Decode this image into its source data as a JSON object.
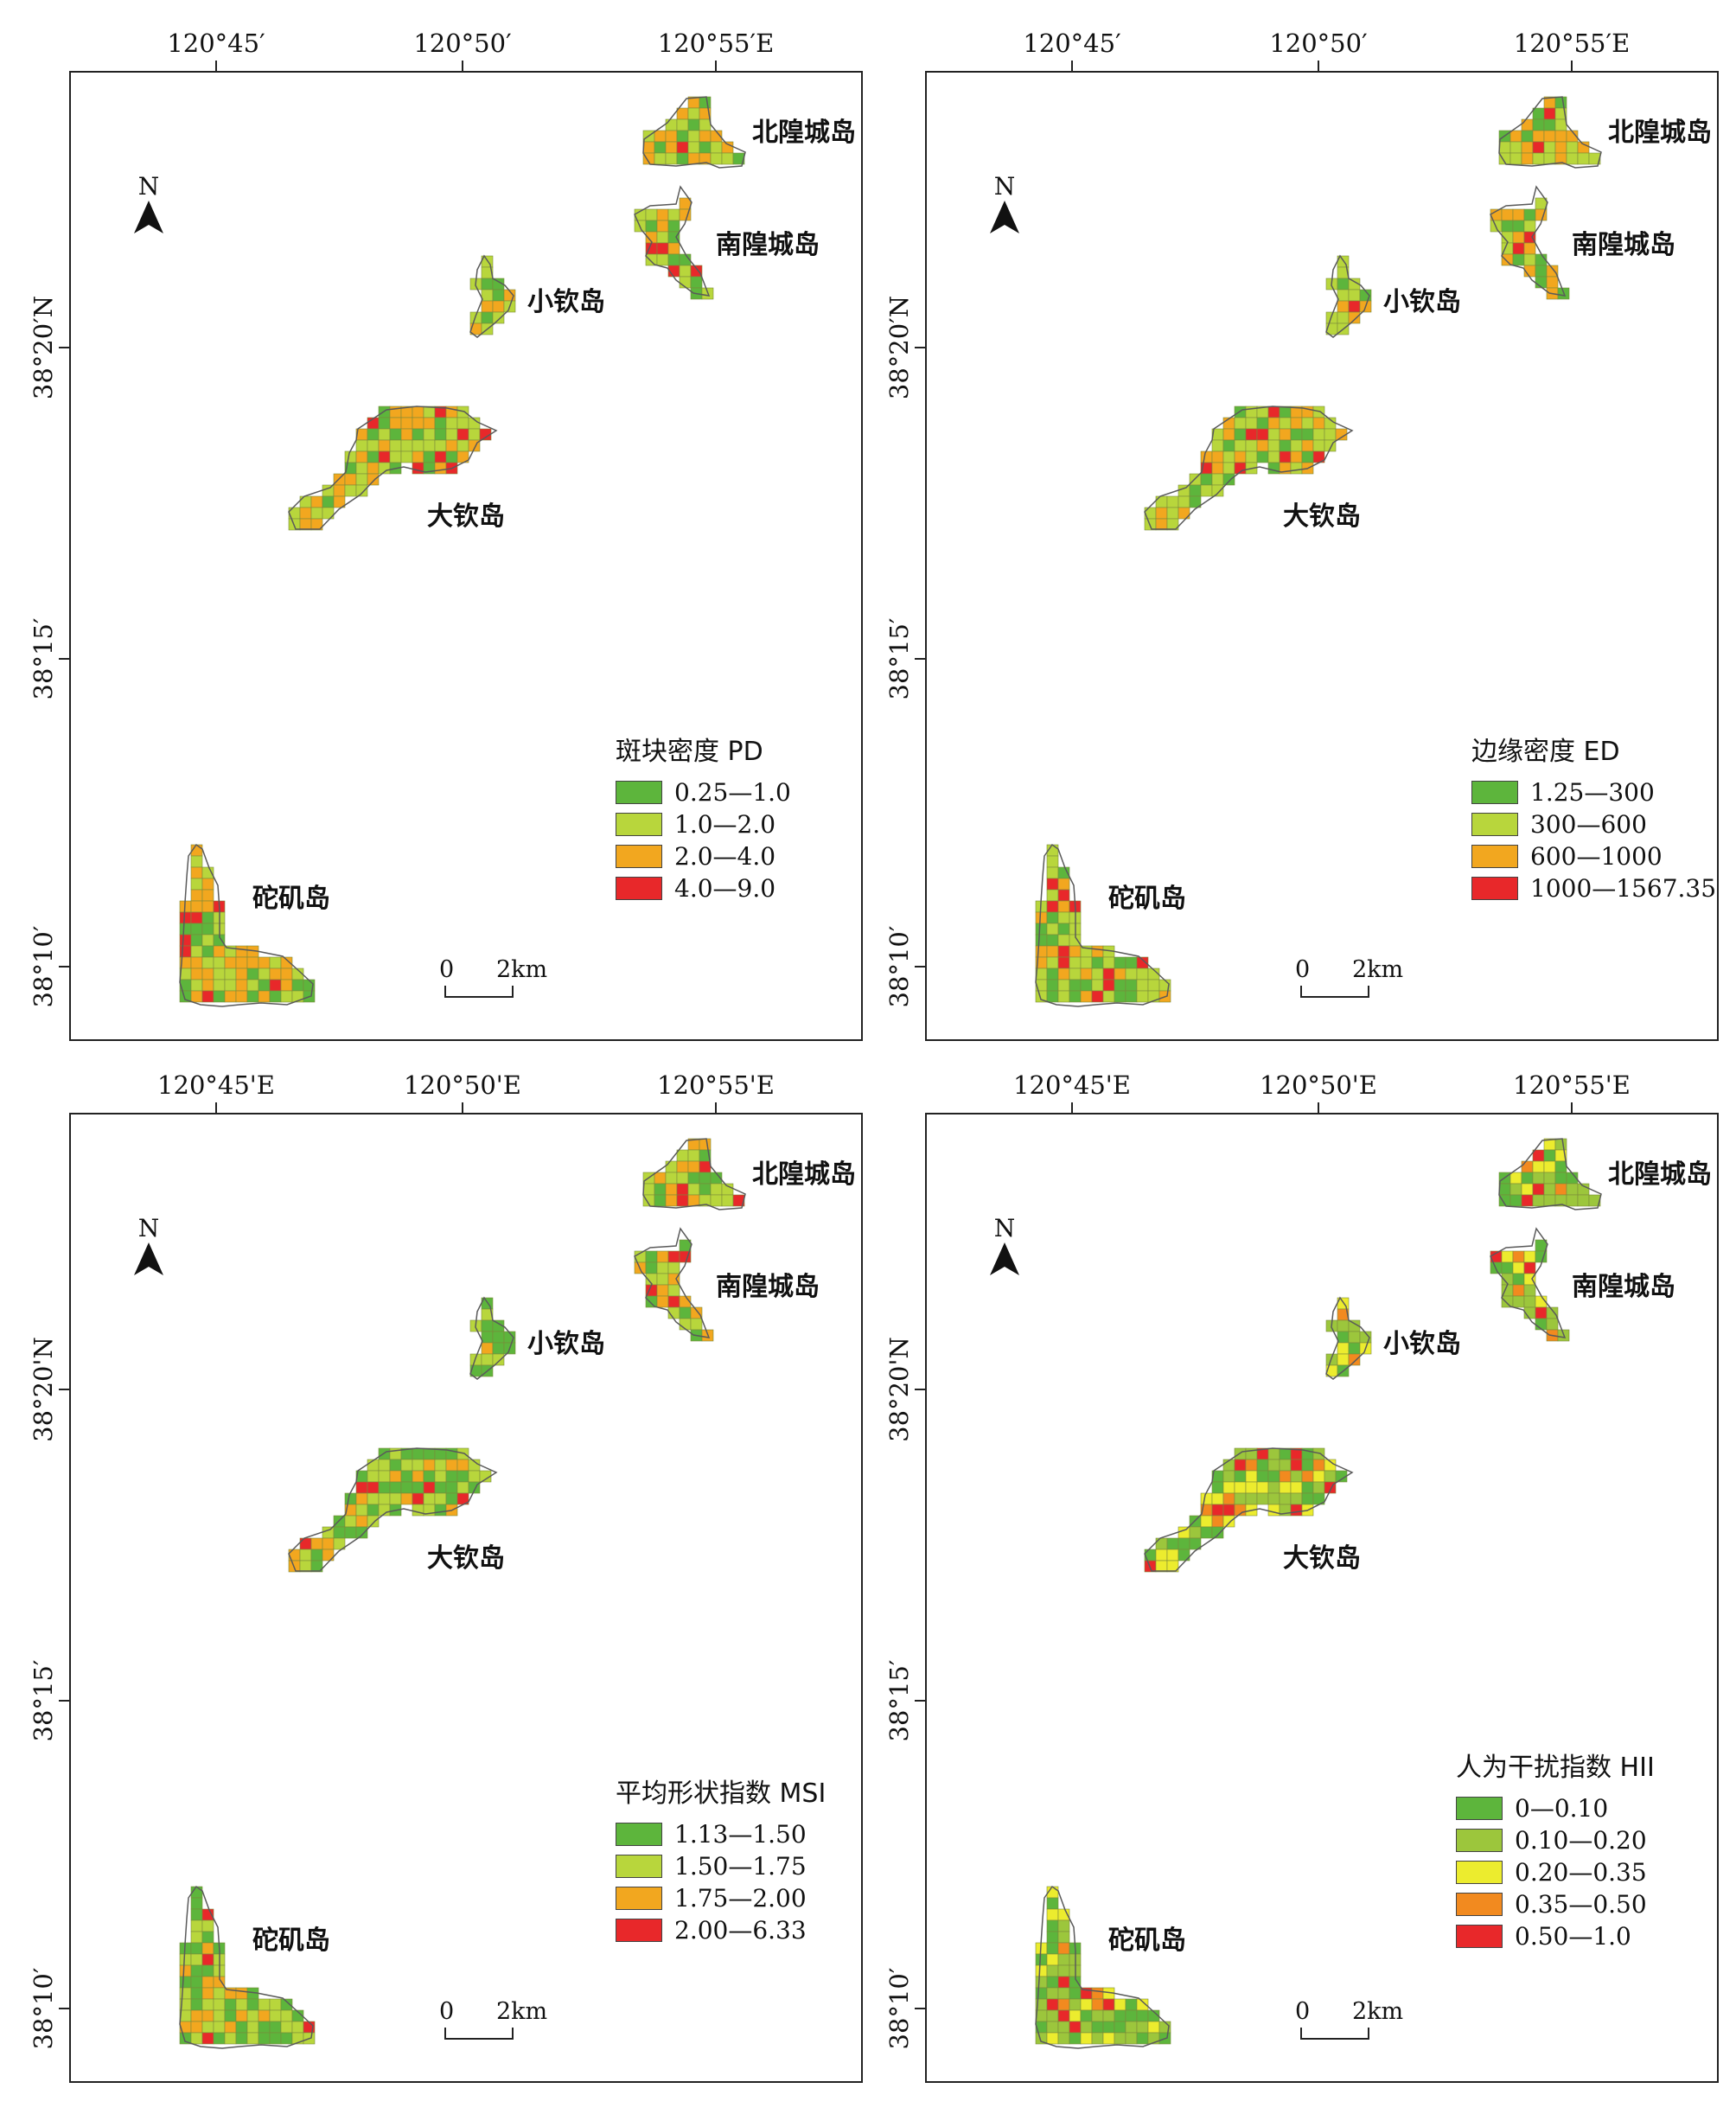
{
  "palettes": {
    "four": [
      "#5db53c",
      "#b8d63c",
      "#f2a71f",
      "#e8282a"
    ],
    "five": [
      "#5db53c",
      "#9cc63c",
      "#ecec2e",
      "#f28a1f",
      "#e8282a"
    ]
  },
  "panels": [
    {
      "id": "pd",
      "top_coords": [
        "120°45′",
        "120°50′",
        "120°55′E"
      ],
      "left_coords": [
        "38°20′N",
        "38°15′",
        "38°10′"
      ],
      "north": "N",
      "islands": {
        "beihuangcheng": "北隍城岛",
        "nanhuangcheng": "南隍城岛",
        "xiaoqin": "小钦岛",
        "daqin": "大钦岛",
        "tuoji": "砣矶岛"
      },
      "legend": {
        "title": "斑块密度 PD",
        "items": [
          {
            "label": "0.25—1.0",
            "color": "#5db53c"
          },
          {
            "label": "1.0—2.0",
            "color": "#b8d63c"
          },
          {
            "label": "2.0—4.0",
            "color": "#f2a71f"
          },
          {
            "label": "4.0—9.0",
            "color": "#e8282a"
          }
        ]
      },
      "scale": {
        "zero": "0",
        "dist": "2km"
      }
    },
    {
      "id": "ed",
      "top_coords": [
        "120°45′",
        "120°50′",
        "120°55′E"
      ],
      "left_coords": [
        "38°20′N",
        "38°15′",
        "38°10′"
      ],
      "north": "N",
      "islands": {
        "beihuangcheng": "北隍城岛",
        "nanhuangcheng": "南隍城岛",
        "xiaoqin": "小钦岛",
        "daqin": "大钦岛",
        "tuoji": "砣矶岛"
      },
      "legend": {
        "title": "边缘密度 ED",
        "items": [
          {
            "label": "1.25—300",
            "color": "#5db53c"
          },
          {
            "label": "300—600",
            "color": "#b8d63c"
          },
          {
            "label": "600—1000",
            "color": "#f2a71f"
          },
          {
            "label": "1000—1567.35",
            "color": "#e8282a"
          }
        ]
      },
      "scale": {
        "zero": "0",
        "dist": "2km"
      }
    },
    {
      "id": "msi",
      "top_coords": [
        "120°45'E",
        "120°50'E",
        "120°55'E"
      ],
      "left_coords": [
        "38°20'N",
        "38°15′",
        "38°10′"
      ],
      "north": "N",
      "islands": {
        "beihuangcheng": "北隍城岛",
        "nanhuangcheng": "南隍城岛",
        "xiaoqin": "小钦岛",
        "daqin": "大钦岛",
        "tuoji": "砣矶岛"
      },
      "legend": {
        "title": "平均形状指数 MSI",
        "items": [
          {
            "label": "1.13—1.50",
            "color": "#5db53c"
          },
          {
            "label": "1.50—1.75",
            "color": "#b8d63c"
          },
          {
            "label": "1.75—2.00",
            "color": "#f2a71f"
          },
          {
            "label": "2.00—6.33",
            "color": "#e8282a"
          }
        ]
      },
      "scale": {
        "zero": "0",
        "dist": "2km"
      }
    },
    {
      "id": "hii",
      "top_coords": [
        "120°45'E",
        "120°50'E",
        "120°55'E"
      ],
      "left_coords": [
        "38°20'N",
        "38°15′",
        "38°10′"
      ],
      "north": "N",
      "islands": {
        "beihuangcheng": "北隍城岛",
        "nanhuangcheng": "南隍城岛",
        "xiaoqin": "小钦岛",
        "daqin": "大钦岛",
        "tuoji": "砣矶岛"
      },
      "legend": {
        "title": "人为干扰指数 HII",
        "items": [
          {
            "label": "0—0.10",
            "color": "#5db53c"
          },
          {
            "label": "0.10—0.20",
            "color": "#9cc63c"
          },
          {
            "label": "0.20—0.35",
            "color": "#ecec2e"
          },
          {
            "label": "0.35—0.50",
            "color": "#f28a1f"
          },
          {
            "label": "0.50—1.0",
            "color": "#e8282a"
          }
        ]
      },
      "scale": {
        "zero": "0",
        "dist": "2km"
      }
    }
  ]
}
